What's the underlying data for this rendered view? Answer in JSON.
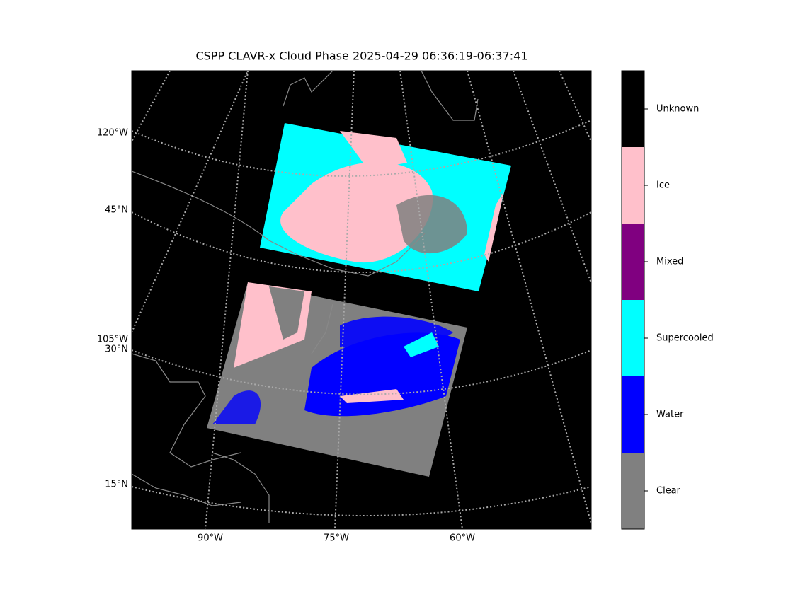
{
  "title": "CSPP CLAVR-x Cloud Phase 2025-04-29 06:36:19-06:37:41",
  "lon_labels": [
    "90°W",
    "75°W",
    "60°W"
  ],
  "lat_labels": [
    "120°W",
    "45°N",
    "105°W",
    "30°N",
    "15°N"
  ],
  "colorbar": {
    "classes": [
      {
        "name": "Unknown",
        "color": "#000000"
      },
      {
        "name": "Ice",
        "color": "#ffc0cb"
      },
      {
        "name": "Mixed",
        "color": "#800080"
      },
      {
        "name": "Supercooled",
        "color": "#00ffff"
      },
      {
        "name": "Water",
        "color": "#0000ff"
      },
      {
        "name": "Clear",
        "color": "#808080"
      }
    ]
  }
}
